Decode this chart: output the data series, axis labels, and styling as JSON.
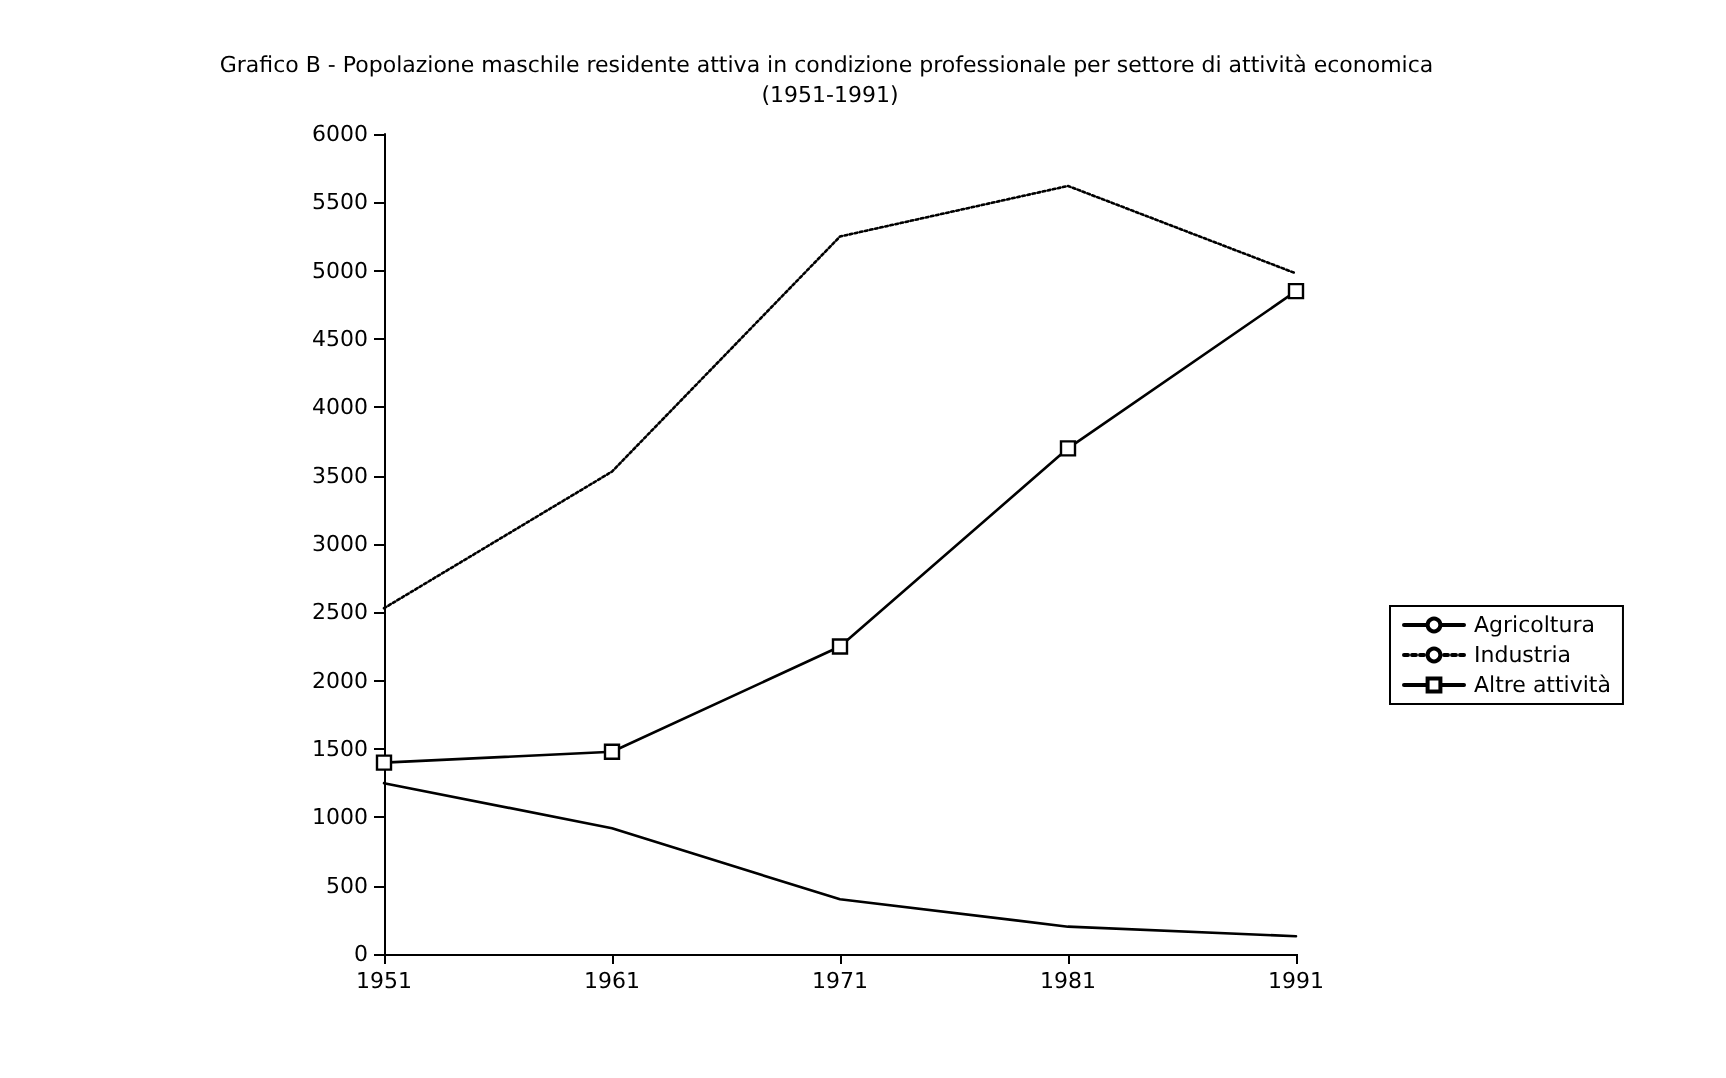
{
  "chart_data": {
    "type": "line",
    "title": "Grafico B - Popolazione maschile residente attiva in condizione professionale per settore di attività economica (1951-1991)",
    "categories": [
      "1951",
      "1961",
      "1971",
      "1981",
      "1991"
    ],
    "series": [
      {
        "name": "Agricoltura",
        "color": "#000000",
        "values": [
          1250,
          920,
          400,
          200,
          130
        ],
        "line_style": "solid",
        "marker": "none"
      },
      {
        "name": "Industria",
        "color": "#000000",
        "values": [
          2530,
          3530,
          5250,
          5620,
          4980
        ],
        "line_style": "dotted",
        "marker": "none"
      },
      {
        "name": "Altre attività",
        "color": "#000000",
        "values": [
          1400,
          1480,
          2250,
          3700,
          4850
        ],
        "line_style": "solid",
        "marker": "square"
      }
    ],
    "ylim": [
      0,
      6000
    ],
    "yticks": [
      0,
      500,
      1000,
      1500,
      2000,
      2500,
      3000,
      3500,
      4000,
      4500,
      5000,
      5500,
      6000
    ],
    "grid": false,
    "legend": "right"
  }
}
